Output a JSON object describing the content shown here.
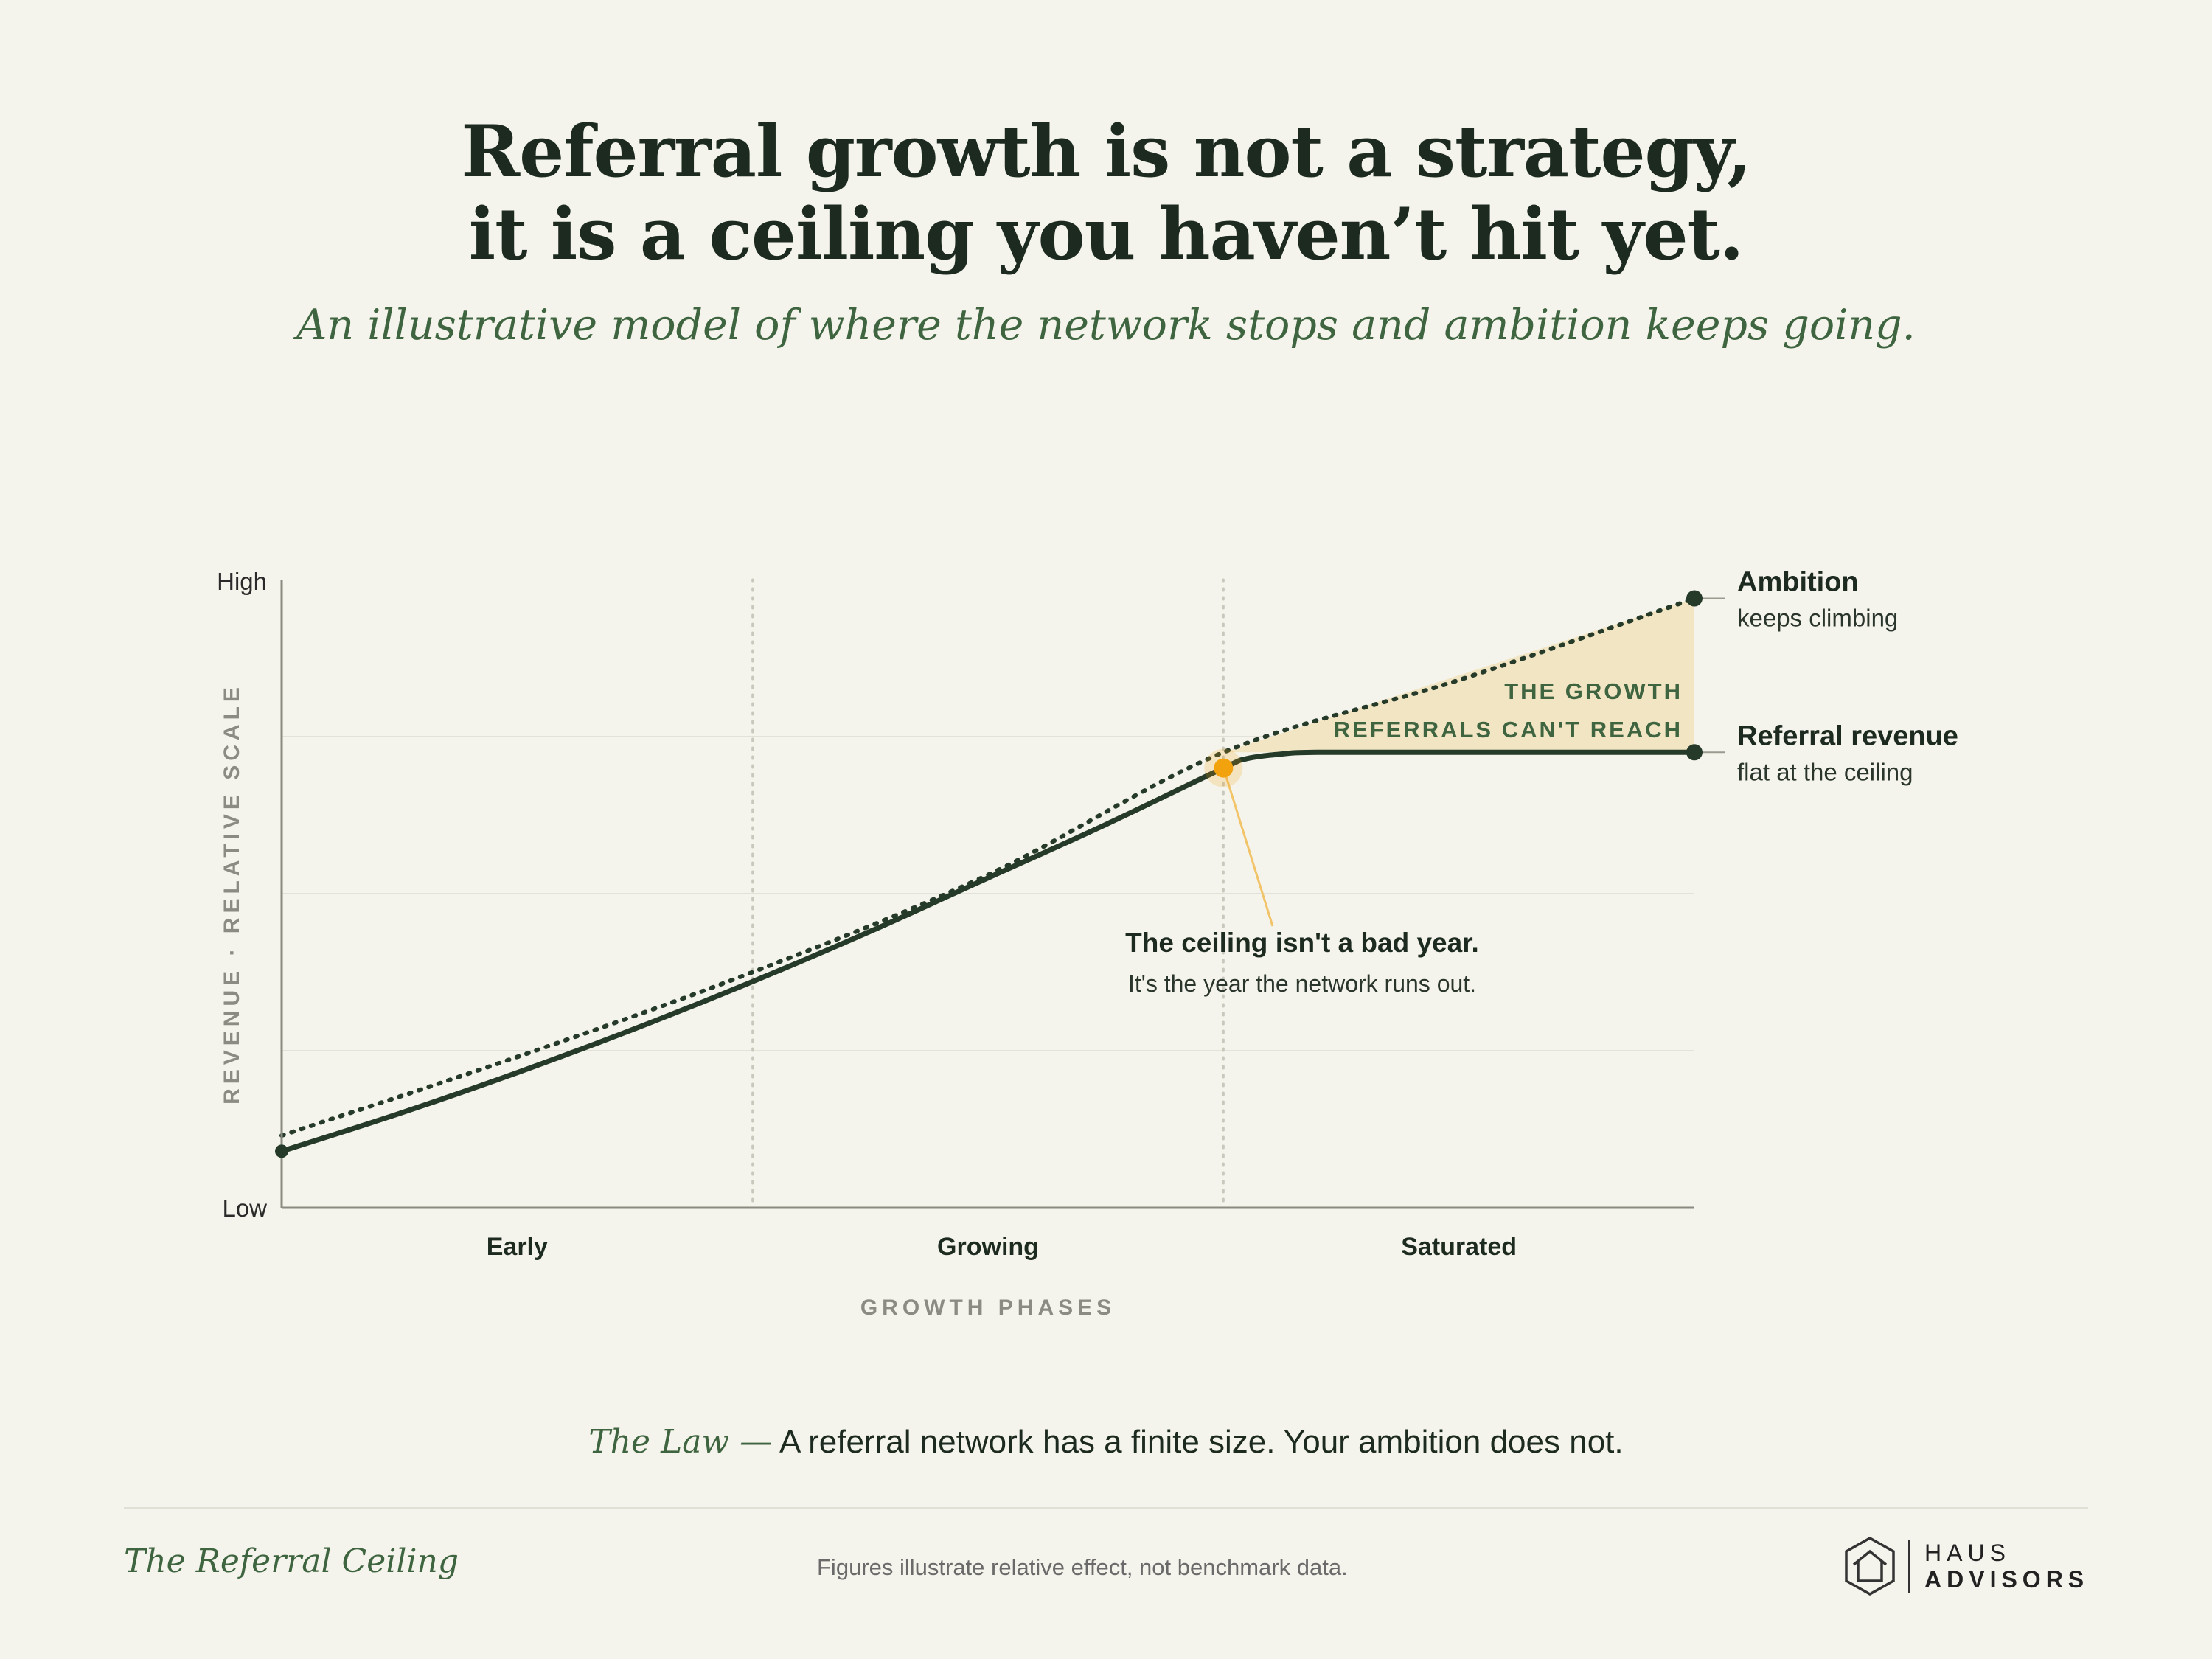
{
  "header": {
    "title_line1": "Referral growth is not a strategy,",
    "title_line2": "it is a ceiling you haven’t hit yet.",
    "subtitle": "An illustrative model of where the network stops and ambition keeps going."
  },
  "chart_data": {
    "type": "line",
    "xlabel": "GROWTH PHASES",
    "ylabel": "REVENUE · RELATIVE SCALE",
    "categories": [
      "Early",
      "Growing",
      "Saturated"
    ],
    "y_ticks": [
      "Low",
      "High"
    ],
    "ylim": [
      0,
      100
    ],
    "xlim": [
      0,
      3
    ],
    "grid": "horizontal",
    "series": [
      {
        "name": "Ambition",
        "style": "dotted",
        "label_line1": "Ambition",
        "label_line2": "keeps climbing",
        "points": [
          [
            0,
            11.5
          ],
          [
            0.5,
            24
          ],
          [
            1,
            37.5
          ],
          [
            1.5,
            53
          ],
          [
            2,
            72.5
          ],
          [
            2.5,
            84
          ],
          [
            3,
            97
          ]
        ]
      },
      {
        "name": "Referral revenue",
        "style": "solid",
        "label_line1": "Referral revenue",
        "label_line2": "flat at the ceiling",
        "points": [
          [
            0,
            9
          ],
          [
            0.25,
            15
          ],
          [
            0.5,
            21.5
          ],
          [
            0.75,
            28.5
          ],
          [
            1,
            36
          ],
          [
            1.25,
            44
          ],
          [
            1.5,
            52.5
          ],
          [
            1.75,
            61
          ],
          [
            2,
            70
          ],
          [
            2.05,
            71.5
          ],
          [
            2.12,
            72.2
          ],
          [
            2.2,
            72.5
          ],
          [
            2.5,
            72.5
          ],
          [
            3,
            72.5
          ]
        ]
      }
    ],
    "gap_annotation": [
      "THE GROWTH",
      "REFERRALS CAN'T REACH"
    ],
    "ceiling_point": [
      2,
      70
    ],
    "callout_title": "The ceiling isn't a bad year.",
    "callout_body": "It's the year the network runs out.",
    "colors": {
      "line": "#253a29",
      "gap_fill": "#f2e5c3",
      "ceiling_marker": "#f1a20d",
      "callout_line": "#f2c46a",
      "gap_text": "#3e6540",
      "axis": "#8a8a80",
      "grid": "#e3e2d8"
    }
  },
  "law": {
    "label": "The Law —",
    "text": "A referral network has a finite size. Your ambition does not."
  },
  "footer": {
    "left": "The Referral Ceiling",
    "center": "Figures illustrate relative effect, not benchmark data.",
    "logo_line1": "HAUS",
    "logo_line2": "ADVISORS"
  }
}
